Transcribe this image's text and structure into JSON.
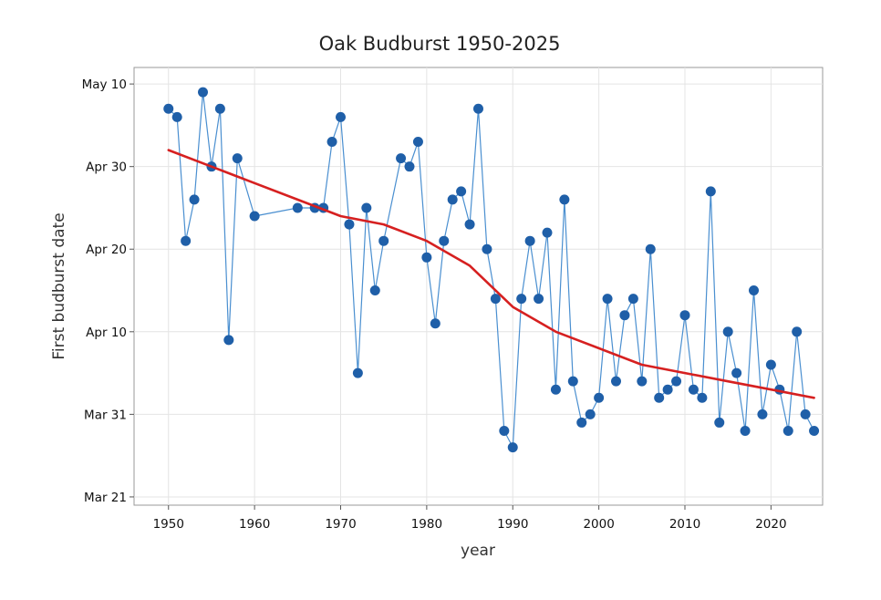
{
  "chart_data": {
    "type": "line",
    "title": "Oak Budburst 1950-2025",
    "xlabel": "year",
    "ylabel": "First budburst date",
    "xlim": [
      1946,
      2026
    ],
    "ylim": [
      "Mar 20",
      "May 12"
    ],
    "x_ticks": [
      1950,
      1960,
      1970,
      1980,
      1990,
      2000,
      2010,
      2020
    ],
    "y_ticks": [
      "Mar 21",
      "Mar 31",
      "Apr 10",
      "Apr 20",
      "Apr 30",
      "May 10"
    ],
    "grid": true,
    "colors": {
      "observed": "#1f5fa8",
      "observed_line": "#4a8fd0",
      "trend": "#d62020"
    },
    "series": [
      {
        "x": [
          1950,
          1951,
          1952,
          1953,
          1954,
          1955,
          1956,
          1957,
          1958,
          1960,
          1965,
          1967,
          1968,
          1969,
          1970,
          1971,
          1972,
          1973,
          1974,
          1975,
          1977,
          1978,
          1979,
          1980,
          1981,
          1982,
          1983,
          1984,
          1985,
          1986,
          1987,
          1988,
          1989,
          1990,
          1991,
          1992,
          1993,
          1994,
          1995,
          1996,
          1997,
          1998,
          1999,
          2000,
          2001,
          2002,
          2003,
          2004,
          2005,
          2006,
          2007,
          2008,
          2009,
          2010,
          2011,
          2012,
          2013,
          2014,
          2015,
          2016,
          2017,
          2018,
          2019,
          2020,
          2021,
          2022,
          2023,
          2024,
          2025
        ],
        "y": [
          "May 7",
          "May 6",
          "Apr 21",
          "Apr 26",
          "May 9",
          "Apr 30",
          "May 7",
          "Apr 9",
          "May 1",
          "Apr 24",
          "Apr 25",
          "Apr 25",
          "Apr 25",
          "May 3",
          "May 6",
          "Apr 23",
          "Apr 5",
          "Apr 25",
          "Apr 15",
          "Apr 21",
          "May 1",
          "Apr 30",
          "May 3",
          "Apr 19",
          "Apr 11",
          "Apr 21",
          "Apr 26",
          "Apr 27",
          "Apr 23",
          "May 7",
          "Apr 20",
          "Apr 14",
          "Mar 29",
          "Mar 27",
          "Apr 14",
          "Apr 21",
          "Apr 14",
          "Apr 22",
          "Apr 3",
          "Apr 26",
          "Apr 4",
          "Mar 30",
          "Mar 31",
          "Apr 2",
          "Apr 14",
          "Apr 4",
          "Apr 12",
          "Apr 14",
          "Apr 4",
          "Apr 20",
          "Apr 2",
          "Apr 3",
          "Apr 4",
          "Apr 12",
          "Apr 3",
          "Apr 2",
          "Apr 27",
          "Mar 30",
          "Apr 10",
          "Apr 5",
          "Mar 29",
          "Apr 15",
          "Mar 31",
          "Apr 6",
          "Apr 3",
          "Mar 29",
          "Apr 10",
          "Mar 31",
          "Mar 29"
        ]
      },
      {
        "x": [
          1950,
          1955,
          1960,
          1965,
          1970,
          1975,
          1980,
          1985,
          1990,
          1995,
          2000,
          2005,
          2010,
          2015,
          2020,
          2025
        ],
        "y": [
          "May 2",
          "Apr 30",
          "Apr 28",
          "Apr 26",
          "Apr 24",
          "Apr 23",
          "Apr 21",
          "Apr 18",
          "Apr 13",
          "Apr 10",
          "Apr 8",
          "Apr 6",
          "Apr 5",
          "Apr 4",
          "Apr 3",
          "Apr 2"
        ]
      }
    ]
  }
}
